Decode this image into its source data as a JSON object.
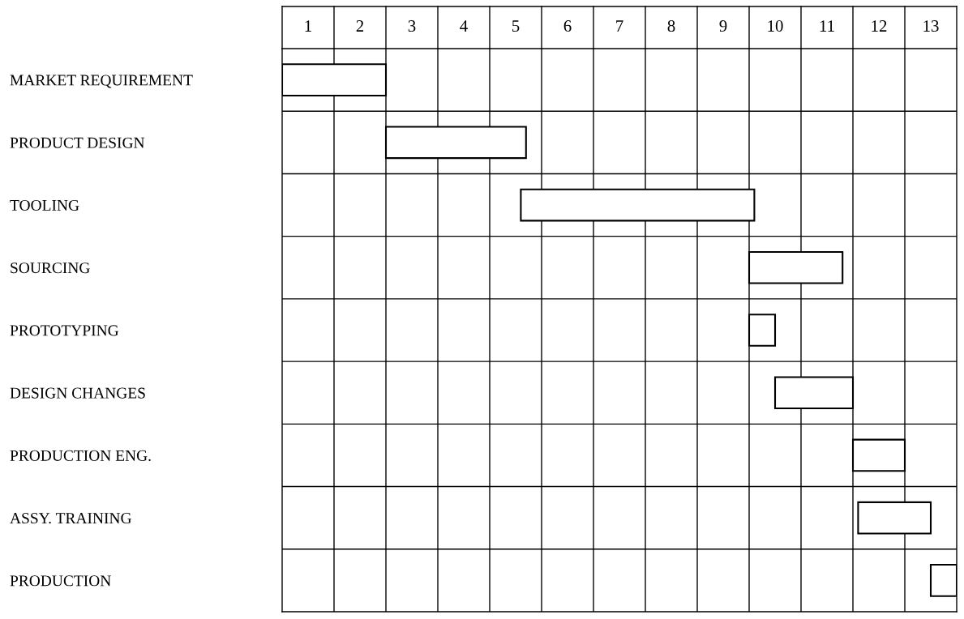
{
  "chart_data": {
    "type": "bar",
    "orientation": "horizontal",
    "categories": [
      "MARKET REQUIREMENT",
      "PRODUCT DESIGN",
      "TOOLING",
      "SOURCING",
      "PROTOTYPING",
      "DESIGN CHANGES",
      "PRODUCTION ENG.",
      "ASSY. TRAINING",
      "PRODUCTION"
    ],
    "base": [
      0,
      2,
      4.6,
      9,
      9,
      9.5,
      11,
      11.1,
      12.5
    ],
    "values": [
      2,
      2.7,
      4.5,
      1.8,
      0.5,
      1.5,
      1,
      1.4,
      0.5
    ],
    "color": "#ffffff",
    "xlim": [
      0,
      13
    ],
    "xticks": [
      {
        "value": 0.5,
        "label": "1"
      },
      {
        "value": 1.5,
        "label": "2"
      },
      {
        "value": 2.5,
        "label": "3"
      },
      {
        "value": 3.5,
        "label": "4"
      },
      {
        "value": 4.5,
        "label": "5"
      },
      {
        "value": 5.5,
        "label": "6"
      },
      {
        "value": 6.5,
        "label": "7"
      },
      {
        "value": 7.5,
        "label": "8"
      },
      {
        "value": 8.5,
        "label": "9"
      },
      {
        "value": 9.5,
        "label": "10"
      },
      {
        "value": 10.5,
        "label": "11"
      },
      {
        "value": 11.5,
        "label": "12"
      },
      {
        "value": 12.5,
        "label": "13"
      }
    ],
    "grid": true
  }
}
